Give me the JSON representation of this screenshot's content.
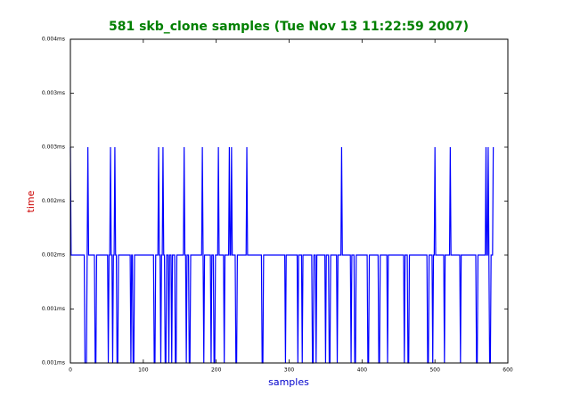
{
  "chart_data": {
    "type": "line",
    "title": "581 skb_clone samples (Tue Nov 13 11:22:59 2007)",
    "xlabel": "samples",
    "ylabel": "time",
    "color": "#0000ff",
    "xlim": [
      0,
      600
    ],
    "xticks": [
      0,
      100,
      200,
      300,
      400,
      500,
      600
    ],
    "ylim": [
      0.001,
      0.004
    ],
    "yticks": [
      {
        "value": 0.001,
        "label": "0.001ms"
      },
      {
        "value": 0.0015,
        "label": "0.001ms"
      },
      {
        "value": 0.002,
        "label": "0.002ms"
      },
      {
        "value": 0.0025,
        "label": "0.002ms"
      },
      {
        "value": 0.003,
        "label": "0.003ms"
      },
      {
        "value": 0.0035,
        "label": "0.003ms"
      },
      {
        "value": 0.004,
        "label": "0.004ms"
      }
    ],
    "x": [
      0,
      1,
      19,
      20,
      22,
      23,
      24,
      25,
      33,
      34,
      35,
      36,
      51,
      52,
      53,
      54,
      55,
      56,
      57,
      58,
      59,
      60,
      61,
      62,
      63,
      64,
      65,
      66,
      82,
      83,
      84,
      85,
      86,
      87,
      88,
      114,
      115,
      116,
      117,
      120,
      121,
      122,
      123,
      124,
      125,
      126,
      127,
      128,
      129,
      130,
      131,
      132,
      134,
      135,
      136,
      138,
      139,
      140,
      143,
      144,
      145,
      146,
      155,
      156,
      157,
      158,
      159,
      160,
      162,
      163,
      164,
      165,
      180,
      181,
      182,
      183,
      184,
      192,
      193,
      194,
      196,
      197,
      198,
      199,
      202,
      203,
      204,
      210,
      211,
      212,
      217,
      218,
      219,
      220,
      221,
      222,
      226,
      227,
      228,
      229,
      241,
      242,
      243,
      262,
      263,
      264,
      265,
      294,
      295,
      296,
      311,
      312,
      313,
      317,
      318,
      319,
      331,
      332,
      333,
      334,
      336,
      337,
      338,
      349,
      350,
      351,
      354,
      355,
      356,
      357,
      365,
      366,
      367,
      371,
      372,
      373,
      384,
      385,
      386,
      389,
      390,
      391,
      392,
      407,
      408,
      409,
      410,
      422,
      423,
      424,
      425,
      434,
      435,
      436,
      457,
      458,
      459,
      462,
      463,
      464,
      465,
      489,
      490,
      491,
      492,
      496,
      497,
      498,
      499,
      500,
      501,
      512,
      513,
      514,
      520,
      521,
      522,
      534,
      535,
      536,
      556,
      557,
      558,
      559,
      569,
      570,
      571,
      572,
      573,
      574,
      575,
      576,
      577,
      579,
      580
    ],
    "values": [
      0.003,
      0.002,
      0.002,
      0.001,
      0.001,
      0.002,
      0.003,
      0.002,
      0.002,
      0.001,
      0.001,
      0.002,
      0.002,
      0.001,
      0.002,
      0.002,
      0.003,
      0.002,
      0.002,
      0.001,
      0.002,
      0.002,
      0.003,
      0.002,
      0.002,
      0.001,
      0.001,
      0.002,
      0.002,
      0.001,
      0.002,
      0.002,
      0.001,
      0.001,
      0.002,
      0.002,
      0.001,
      0.001,
      0.002,
      0.002,
      0.003,
      0.002,
      0.002,
      0.001,
      0.002,
      0.002,
      0.003,
      0.002,
      0.002,
      0.001,
      0.001,
      0.002,
      0.002,
      0.001,
      0.002,
      0.002,
      0.001,
      0.002,
      0.002,
      0.001,
      0.001,
      0.002,
      0.002,
      0.003,
      0.002,
      0.002,
      0.001,
      0.002,
      0.002,
      0.001,
      0.001,
      0.002,
      0.002,
      0.003,
      0.002,
      0.001,
      0.002,
      0.002,
      0.001,
      0.002,
      0.002,
      0.001,
      0.001,
      0.002,
      0.002,
      0.003,
      0.002,
      0.002,
      0.001,
      0.002,
      0.002,
      0.003,
      0.002,
      0.002,
      0.003,
      0.002,
      0.002,
      0.001,
      0.001,
      0.002,
      0.002,
      0.003,
      0.002,
      0.002,
      0.001,
      0.001,
      0.002,
      0.002,
      0.001,
      0.002,
      0.002,
      0.001,
      0.002,
      0.002,
      0.001,
      0.002,
      0.002,
      0.001,
      0.001,
      0.002,
      0.002,
      0.001,
      0.002,
      0.002,
      0.001,
      0.002,
      0.002,
      0.001,
      0.001,
      0.002,
      0.002,
      0.001,
      0.002,
      0.002,
      0.003,
      0.002,
      0.002,
      0.001,
      0.002,
      0.002,
      0.001,
      0.001,
      0.002,
      0.002,
      0.001,
      0.001,
      0.002,
      0.002,
      0.001,
      0.001,
      0.002,
      0.002,
      0.001,
      0.002,
      0.002,
      0.001,
      0.002,
      0.002,
      0.001,
      0.001,
      0.002,
      0.002,
      0.001,
      0.001,
      0.002,
      0.002,
      0.001,
      0.002,
      0.002,
      0.003,
      0.002,
      0.002,
      0.001,
      0.002,
      0.002,
      0.003,
      0.002,
      0.002,
      0.001,
      0.002,
      0.002,
      0.001,
      0.001,
      0.002,
      0.002,
      0.003,
      0.002,
      0.002,
      0.003,
      0.002,
      0.001,
      0.001,
      0.002,
      0.002,
      0.003
    ]
  }
}
